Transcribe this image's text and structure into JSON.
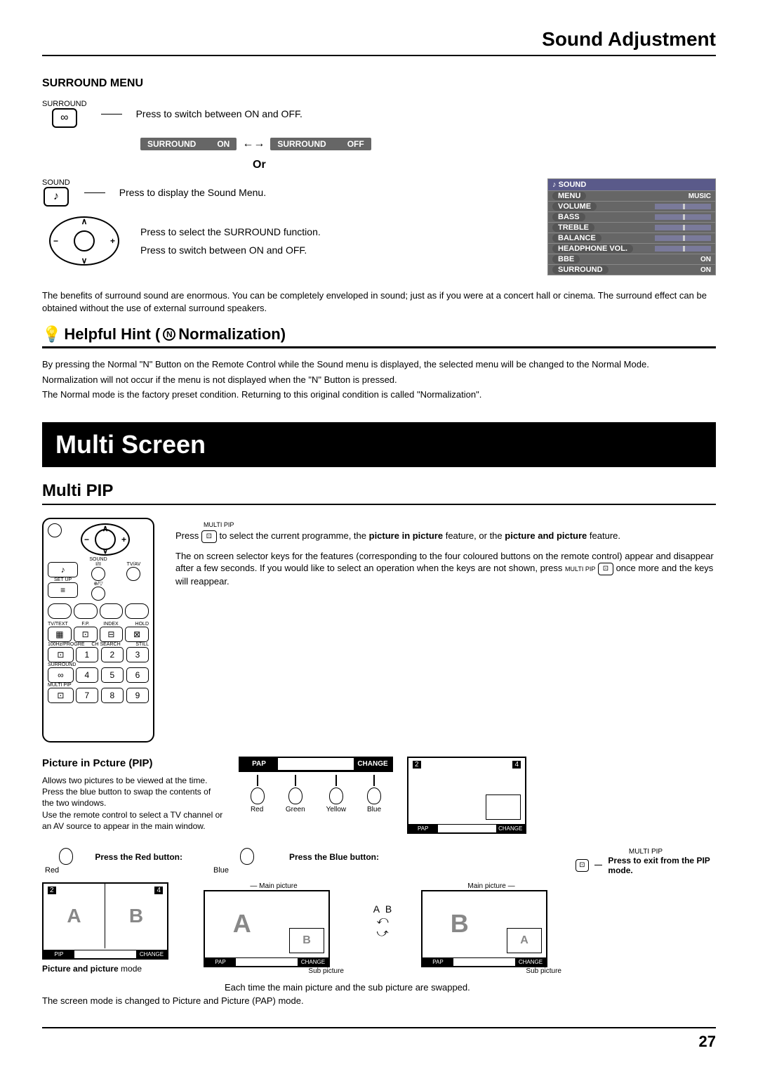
{
  "page_title": "Sound Adjustment",
  "surround_menu": {
    "heading": "SURROUND MENU",
    "label_surround": "SURROUND",
    "label_sound": "SOUND",
    "press_switch": "Press to switch between ON and OFF.",
    "press_display": "Press to display the Sound Menu.",
    "press_select": "Press to select the SURROUND function.",
    "or_label": "Or",
    "pill1_label": "SURROUND",
    "pill1_state": "ON",
    "pill2_label": "SURROUND",
    "pill2_state": "OFF"
  },
  "sound_osd": {
    "header": "SOUND",
    "rows": [
      {
        "label": "MENU",
        "val": "MUSIC"
      },
      {
        "label": "VOLUME",
        "val": "slider"
      },
      {
        "label": "BASS",
        "val": "slider"
      },
      {
        "label": "TREBLE",
        "val": "slider"
      },
      {
        "label": "BALANCE",
        "val": "slider"
      },
      {
        "label": "HEADPHONE  VOL.",
        "val": "slider"
      },
      {
        "label": "BBE",
        "val": "ON"
      },
      {
        "label": "SURROUND",
        "val": "ON"
      }
    ]
  },
  "surround_para": "The benefits of surround sound are enormous. You can be completely enveloped in sound; just as if you were at a concert hall or cinema. The surround effect can be obtained without the use of  external surround speakers.",
  "hint": {
    "title_pre": "Helpful Hint (",
    "n_letter": "N",
    "title_post": "Normalization)",
    "p1": "By pressing the Normal \"N\" Button on the Remote Control while the Sound menu is displayed, the selected menu will be changed to the Normal Mode.",
    "p2": "Normalization will not occur if the menu is not displayed when the \"N\" Button is pressed.",
    "p3": "The Normal mode is the factory preset condition. Returning to this original condition is called \"Normalization\"."
  },
  "feature_title": "Multi Screen",
  "multipip": {
    "title": "Multi PIP",
    "top_label": "MULTI PIP",
    "desc1a": "Press ",
    "desc1b": " to select the current programme, the ",
    "desc1_bold1": "picture in picture",
    "desc1c": " feature, or the ",
    "desc1_bold2": "picture and picture",
    "desc1d": " feature.",
    "desc2a": "The on screen selector keys for the features (corresponding to the four coloured buttons on the remote control) appear and disappear after a few seconds. If you would like to select an operation when the keys are not shown, press ",
    "desc2_label": "MULTI PIP",
    "desc2b": " once more and the keys will reappear."
  },
  "pip": {
    "title": "Picture in Pcture (PIP)",
    "desc": "Allows two pictures to be viewed at the time. Press the blue button to swap the contents of the two windows.\nUse the remote control to select a TV channel or an AV source to appear in the main window.",
    "osd_pap": "PAP",
    "osd_change": "CHANGE",
    "osd_pip": "PIP",
    "colors": [
      "Red",
      "Green",
      "Yellow",
      "Blue"
    ],
    "ch2": "2",
    "ch4": "4"
  },
  "instructions": {
    "red": "Press the Red button:",
    "blue": "Press the Blue button:",
    "red_label": "Red",
    "blue_label": "Blue",
    "exit_label": "MULTI PIP",
    "exit_text": "Press to exit from the PIP mode.",
    "main_pic": "Main picture",
    "sub_pic": "Sub picture",
    "pap_mode": "Picture and picture",
    "pap_mode_suffix": " mode",
    "swap_text": "Each time the main picture and the sub picture are swapped.",
    "pap_bottom": "The screen mode is changed to Picture and Picture (PAP) mode.",
    "letter_a": "A",
    "letter_b": "B"
  },
  "remote": {
    "labels": [
      "SOUND",
      "SET UP",
      "I/II",
      "TV/AV",
      "TV/TEXT",
      "F.P.",
      "INDEX",
      "HOLD",
      "100Hz/PROGRE",
      "CH SEARCH",
      "STILL",
      "SURROUND",
      "MULTI PIP"
    ],
    "nums": [
      "1",
      "2",
      "3",
      "4",
      "5",
      "6",
      "7",
      "8",
      "9"
    ]
  },
  "page_number": "27"
}
